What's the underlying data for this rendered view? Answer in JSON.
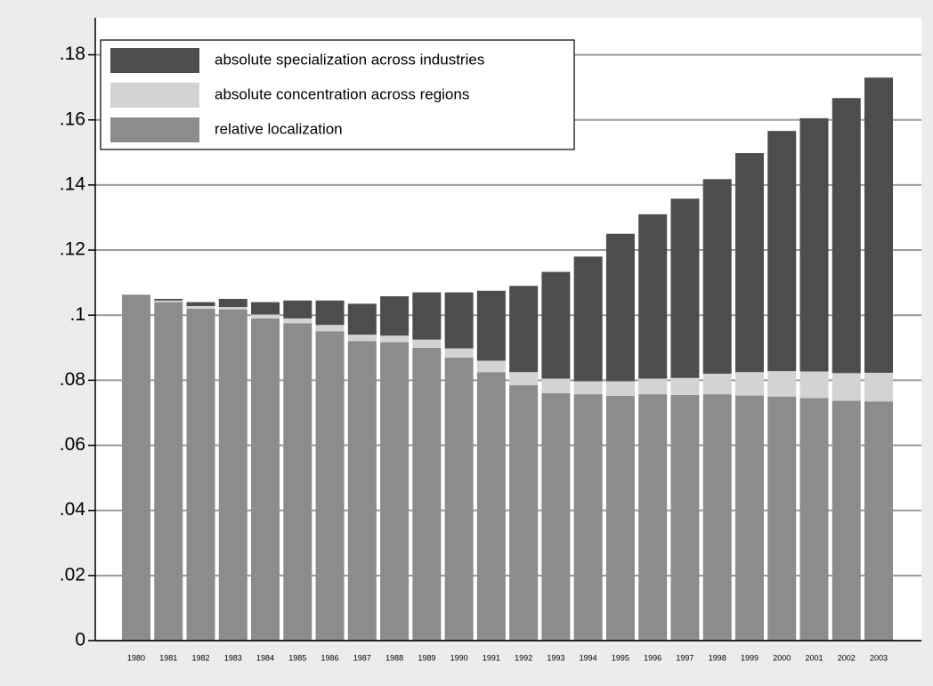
{
  "chart_data": {
    "type": "stacked_bar",
    "categories": [
      "1980",
      "1981",
      "1982",
      "1983",
      "1984",
      "1985",
      "1986",
      "1987",
      "1988",
      "1989",
      "1990",
      "1991",
      "1992",
      "1993",
      "1994",
      "1995",
      "1996",
      "1997",
      "1998",
      "1999",
      "2000",
      "2001",
      "2002",
      "2003"
    ],
    "series": [
      {
        "name": "absolute specialization across industries",
        "color": "#4d4d4d",
        "values": [
          0,
          0.0005,
          0.0012,
          0.0025,
          0.0038,
          0.0055,
          0.0075,
          0.0095,
          0.0121,
          0.0145,
          0.0172,
          0.0215,
          0.0265,
          0.0328,
          0.0383,
          0.0453,
          0.0505,
          0.0551,
          0.0598,
          0.0673,
          0.0738,
          0.0778,
          0.0845,
          0.0907
        ]
      },
      {
        "name": "absolute concentration across regions",
        "color": "#d3d3d3",
        "values": [
          0,
          0.0005,
          0.0008,
          0.0007,
          0.0012,
          0.0015,
          0.002,
          0.002,
          0.002,
          0.0025,
          0.0028,
          0.0035,
          0.004,
          0.0045,
          0.004,
          0.0045,
          0.0048,
          0.0052,
          0.0063,
          0.0072,
          0.0078,
          0.0082,
          0.0085,
          0.0088
        ]
      },
      {
        "name": "relative localization",
        "color": "#8c8c8c",
        "values": [
          0.1063,
          0.104,
          0.102,
          0.1018,
          0.099,
          0.0975,
          0.095,
          0.092,
          0.0917,
          0.09,
          0.087,
          0.0825,
          0.0785,
          0.076,
          0.0757,
          0.0752,
          0.0757,
          0.0755,
          0.0757,
          0.0753,
          0.075,
          0.0745,
          0.0737,
          0.0735
        ]
      }
    ],
    "ylim": [
      0,
      0.19
    ],
    "yticks": [
      0,
      {
        "value": 0.02,
        "label": ".02"
      },
      {
        "value": 0.04,
        "label": ".04"
      },
      {
        "value": 0.06,
        "label": ".06"
      },
      {
        "value": 0.08,
        "label": ".08"
      },
      {
        "value": 0.1,
        "label": ".1"
      },
      {
        "value": 0.12,
        "label": ".12"
      },
      {
        "value": 0.14,
        "label": ".14"
      },
      {
        "value": 0.16,
        "label": ".16"
      },
      {
        "value": 0.18,
        "label": ".18"
      }
    ],
    "grid": true,
    "legend": "top-left",
    "stack_order": "bottom-up-reverse"
  }
}
